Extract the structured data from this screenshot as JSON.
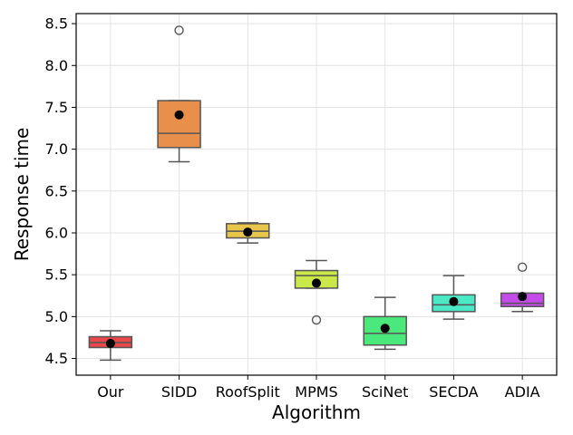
{
  "chart_data": {
    "type": "box",
    "title": "",
    "xlabel": "Algorithm",
    "ylabel": "Response time",
    "ylim": [
      4.3,
      8.62
    ],
    "yticks": [
      "4.5",
      "5.0",
      "5.5",
      "6.0",
      "6.5",
      "7.0",
      "7.5",
      "8.0",
      "8.5"
    ],
    "grid": true,
    "legend": "none",
    "mean_marker": "black filled circle",
    "categories": [
      "Our",
      "SIDD",
      "RoofSplit",
      "MPMS",
      "SciNet",
      "SECDA",
      "ADIA"
    ],
    "boxes": [
      {
        "name": "Our",
        "color": "#e8474b",
        "whisker_low": 4.48,
        "q1": 4.63,
        "median": 4.69,
        "q3": 4.76,
        "whisker_high": 4.83,
        "mean": 4.68,
        "outliers": []
      },
      {
        "name": "SIDD",
        "color": "#e8904b",
        "whisker_low": 6.85,
        "q1": 7.02,
        "median": 7.19,
        "q3": 7.58,
        "whisker_high": 7.58,
        "mean": 7.41,
        "outliers": [
          8.42
        ]
      },
      {
        "name": "RoofSplit",
        "color": "#e8c64b",
        "whisker_low": 5.88,
        "q1": 5.94,
        "median": 6.02,
        "q3": 6.11,
        "whisker_high": 6.12,
        "mean": 6.01,
        "outliers": []
      },
      {
        "name": "MPMS",
        "color": "#cbe84b",
        "whisker_low": 5.34,
        "q1": 5.34,
        "median": 5.49,
        "q3": 5.55,
        "whisker_high": 5.67,
        "mean": 5.4,
        "outliers": [
          4.96
        ]
      },
      {
        "name": "SciNet",
        "color": "#4be87c",
        "whisker_low": 4.61,
        "q1": 4.66,
        "median": 4.8,
        "q3": 5.0,
        "whisker_high": 5.23,
        "mean": 4.86,
        "outliers": []
      },
      {
        "name": "SECDA",
        "color": "#4be8c6",
        "whisker_low": 4.97,
        "q1": 5.06,
        "median": 5.14,
        "q3": 5.26,
        "whisker_high": 5.49,
        "mean": 5.18,
        "outliers": []
      },
      {
        "name": "ADIA",
        "color": "#c44be8",
        "whisker_low": 5.06,
        "q1": 5.12,
        "median": 5.16,
        "q3": 5.28,
        "whisker_high": 5.28,
        "mean": 5.24,
        "outliers": [
          5.59
        ]
      }
    ]
  }
}
